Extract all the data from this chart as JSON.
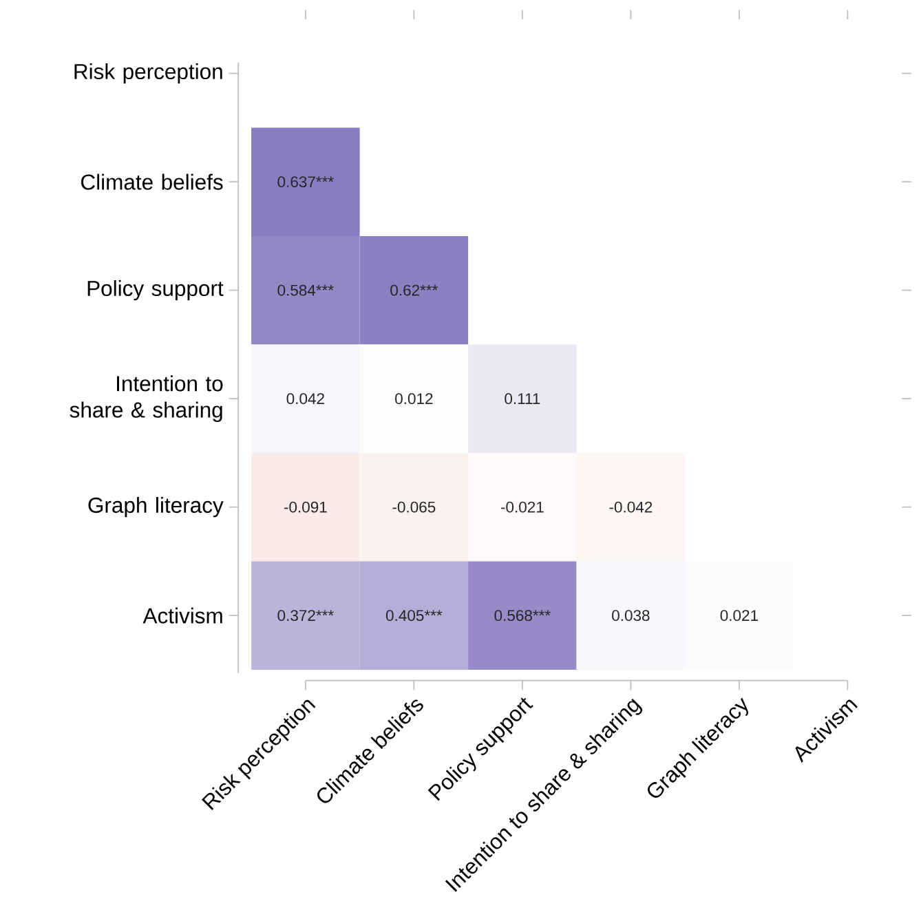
{
  "chart_data": {
    "type": "heatmap",
    "categories": [
      "Risk perception",
      "Climate beliefs",
      "Policy support",
      "Intention to share & sharing",
      "Graph literacy",
      "Activism"
    ],
    "y_categories": [
      "Risk perception",
      "Climate beliefs",
      "Policy support",
      "Intention to share & sharing",
      "Graph literacy",
      "Activism"
    ],
    "cells": [
      [
        null,
        null,
        null,
        null,
        null,
        null
      ],
      [
        0.637,
        null,
        null,
        null,
        null,
        null
      ],
      [
        0.584,
        0.62,
        null,
        null,
        null,
        null
      ],
      [
        0.042,
        0.012,
        0.111,
        null,
        null,
        null
      ],
      [
        -0.091,
        -0.065,
        -0.021,
        -0.042,
        null,
        null
      ],
      [
        0.372,
        0.405,
        0.568,
        0.038,
        0.021,
        null
      ]
    ],
    "cell_labels": [
      [
        null,
        null,
        null,
        null,
        null,
        null
      ],
      [
        "0.637***",
        null,
        null,
        null,
        null,
        null
      ],
      [
        "0.584***",
        "0.62***",
        null,
        null,
        null,
        null
      ],
      [
        "0.042",
        "0.012",
        "0.111",
        null,
        null,
        null
      ],
      [
        "-0.091",
        "-0.065",
        "-0.021",
        "-0.042",
        null,
        null
      ],
      [
        "0.372***",
        "0.405***",
        "0.568***",
        "0.038",
        "0.021",
        null
      ]
    ]
  }
}
